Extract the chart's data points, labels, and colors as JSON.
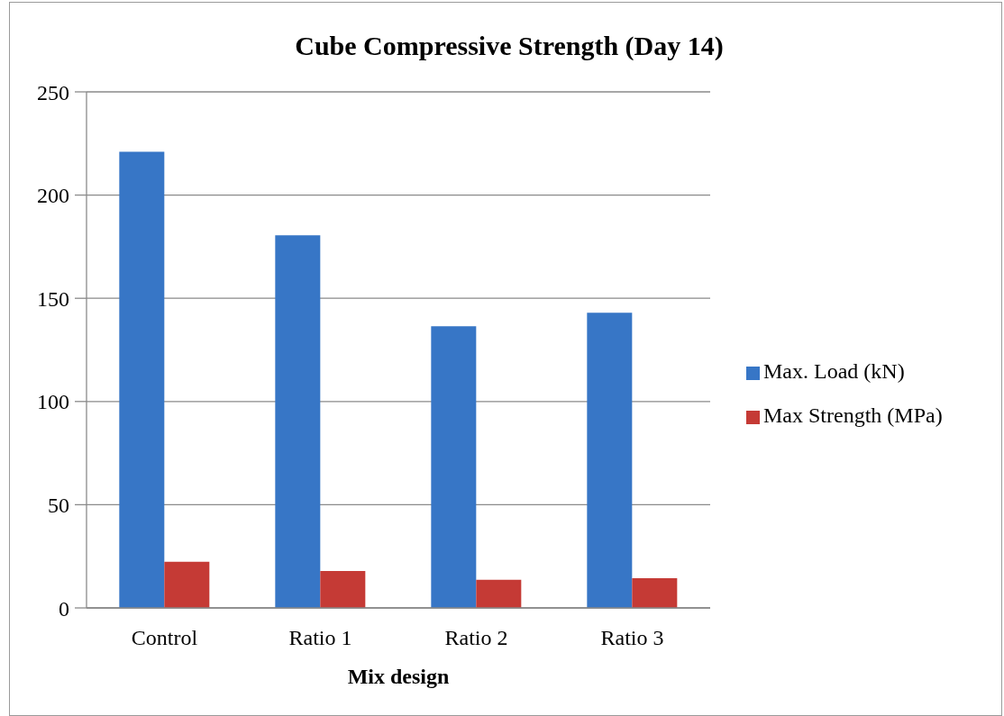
{
  "chart_data": {
    "type": "bar",
    "title": "Cube Compressive Strength (Day 14)",
    "xlabel": "Mix design",
    "categories": [
      "Control",
      "Ratio 1",
      "Ratio 2",
      "Ratio 3"
    ],
    "series": [
      {
        "name": "Max. Load (kN)",
        "color": "#3776c6",
        "values": [
          221,
          180.5,
          136.5,
          143
        ]
      },
      {
        "name": "Max Strength (MPa)",
        "color": "#c53a35",
        "values": [
          22.4,
          17.9,
          13.6,
          14.4
        ]
      }
    ],
    "ylim": [
      0,
      250
    ],
    "yticks": [
      0,
      50,
      100,
      150,
      200,
      250
    ],
    "grid": "y",
    "legend": "right"
  }
}
